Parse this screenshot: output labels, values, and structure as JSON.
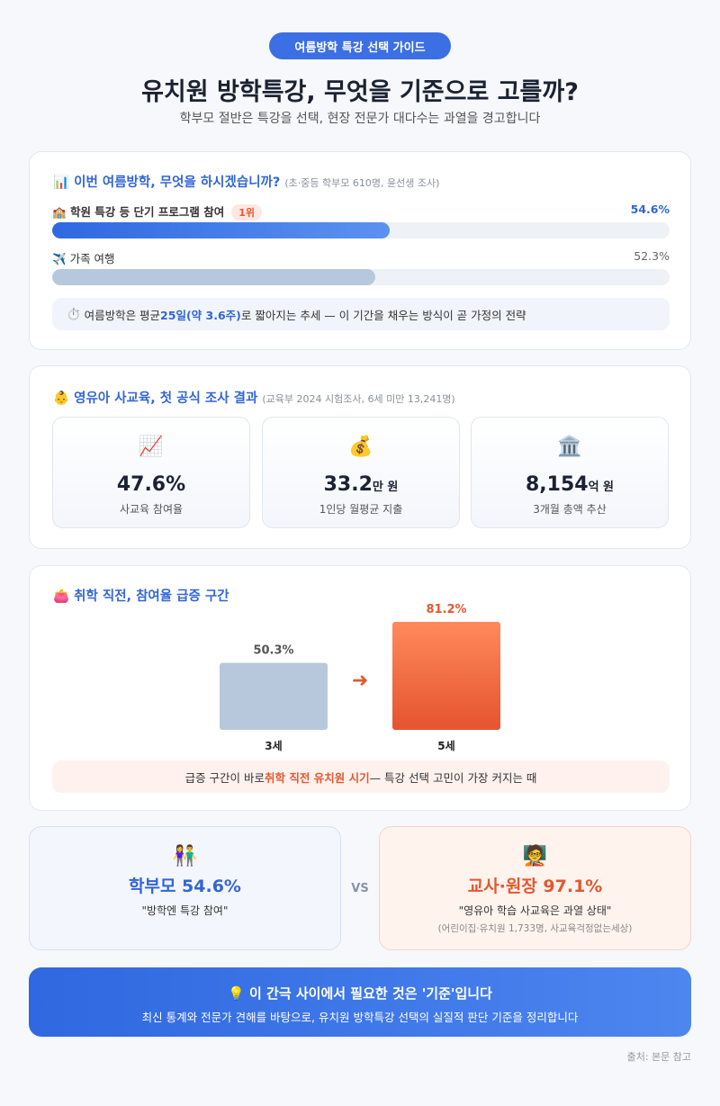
{
  "header": {
    "badge": "여름방학 특강 선택 가이드",
    "title": "유치원 방학특강, 무엇을 기준으로 고를까?",
    "subtitle": "학부모 절반은 특강을 선택, 현장 전문가 대다수는 과열을 경고합니다"
  },
  "survey": {
    "icon": "📊",
    "title": "이번 여름방학, 무엇을 하시겠습니까?",
    "source": "(초·중등 학부모 610명, 윤선생 조사)",
    "xlim": [
      0,
      100
    ],
    "items": [
      {
        "icon": "🏫",
        "label": "학원 특강 등 단기 프로그램 참여",
        "rank": "1위",
        "value": 54.6,
        "value_label": "54.6%"
      },
      {
        "icon": "✈️",
        "label": "가족 여행",
        "value": 52.3,
        "value_label": "52.3%"
      }
    ],
    "note": {
      "icon": "⏱️",
      "before": "여름방학은 평균 ",
      "highlight": "25일(약 3.6주)",
      "after": "로 짧아지는 추세 — 이 기간을 채우는 방식이 곧 가정의 전략"
    }
  },
  "stats": {
    "icon": "👶",
    "title": "영유아 사교육, 첫 공식 조사 결과",
    "source": "(교육부 2024 시험조사, 6세 미만 13,241명)",
    "cards": [
      {
        "icon": "📈",
        "value": "47.6%",
        "unit": "",
        "label": "사교육 참여율"
      },
      {
        "icon": "💰",
        "value": "33.2",
        "unit": "만 원",
        "label": "1인당 월평균 지출"
      },
      {
        "icon": "🏛️",
        "value": "8,154",
        "unit": "억 원",
        "label": "3개월 총액 추산"
      }
    ]
  },
  "growth": {
    "icon": "👛",
    "title": "취학 직전, 참여율 급증 구간",
    "chart_data": {
      "type": "bar",
      "categories": [
        "3세",
        "5세"
      ],
      "values": [
        50.3,
        81.2
      ],
      "value_labels": [
        "50.3%",
        "81.2%"
      ]
    },
    "arrow": "➜",
    "note": {
      "before": "급증 구간이 바로 ",
      "highlight": "취학 직전 유치원 시기",
      "after": " — 특강 선택 고민이 가장 커지는 때"
    }
  },
  "compare": {
    "left": {
      "icon": "👫",
      "headline": "학부모 54.6%",
      "quote": "\"방학엔 특강 참여\""
    },
    "vs": "VS",
    "right": {
      "icon": "🧑‍🏫",
      "headline": "교사·원장 97.1%",
      "quote": "\"영유아 학습 사교육은 과열 상태\"",
      "source": "(어린이집·유치원 1,733명, 사교육걱정없는세상)"
    }
  },
  "banner": {
    "icon": "💡",
    "title": "이 간극 사이에서 필요한 것은 '기준'입니다",
    "text": "최신 통계와 전문가 견해를 바탕으로, 유치원 방학특강 선택의 실질적 판단 기준을 정리합니다"
  },
  "footer": "출처: 본문 참고"
}
